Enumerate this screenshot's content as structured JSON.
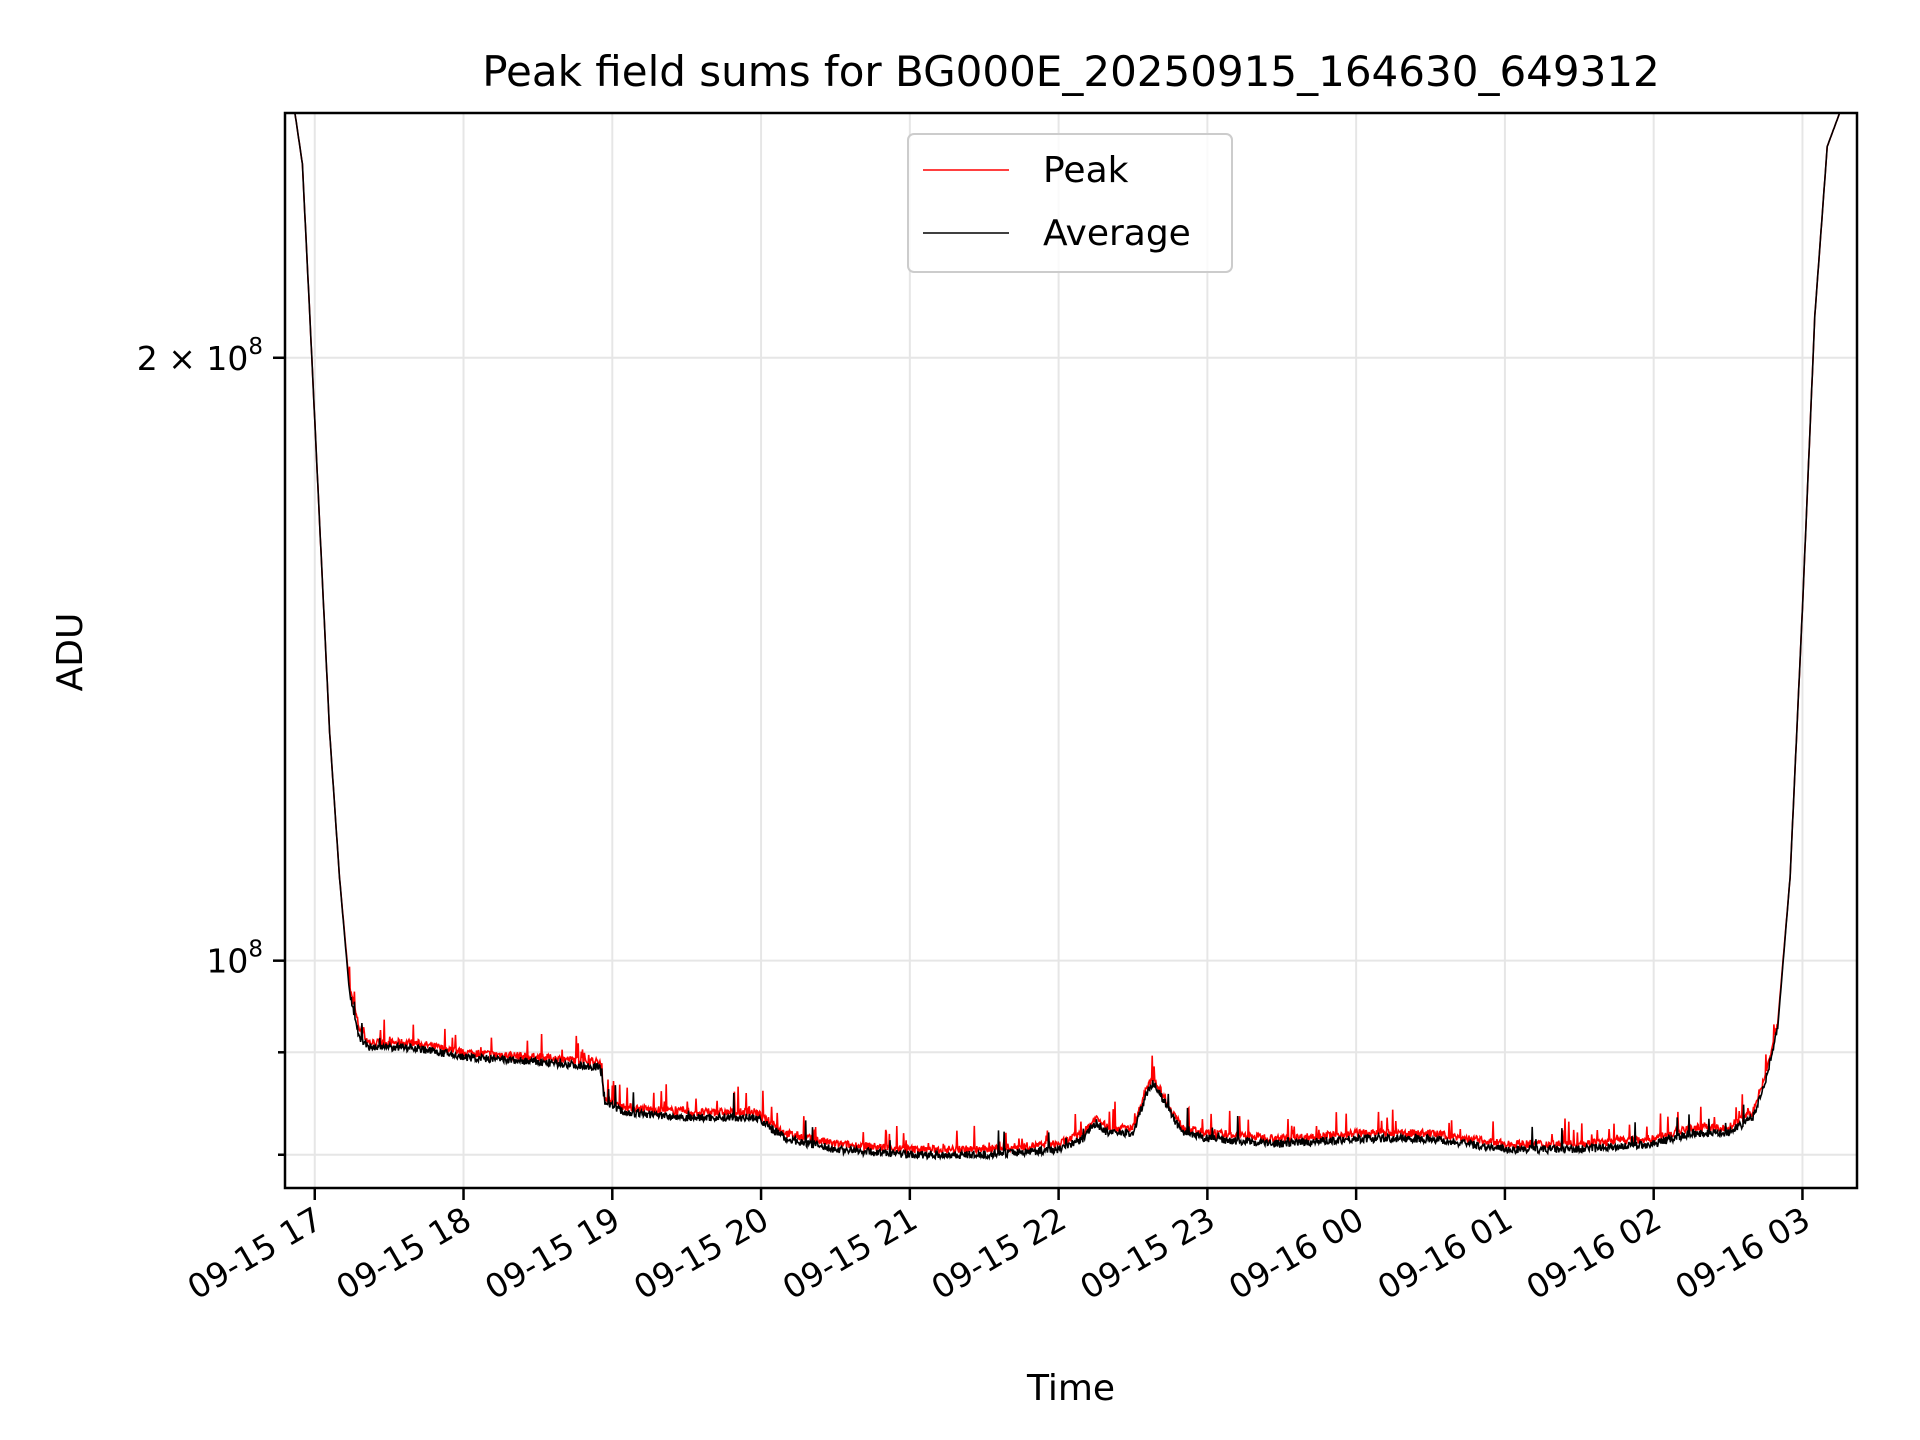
{
  "chart_data": {
    "type": "line",
    "title": "Peak field sums for BG000E_20250915_164630_649312",
    "xlabel": "Time",
    "ylabel": "ADU",
    "yscale": "log",
    "grid": true,
    "legend_position": "top-center",
    "xlim": [
      "09-15 16:48",
      "09-16 03:22"
    ],
    "ylim": [
      77000000,
      265000000
    ],
    "x_ticks": [
      {
        "value": "09-15 17:00",
        "label": "09-15 17"
      },
      {
        "value": "09-15 18:00",
        "label": "09-15 18"
      },
      {
        "value": "09-15 19:00",
        "label": "09-15 19"
      },
      {
        "value": "09-15 20:00",
        "label": "09-15 20"
      },
      {
        "value": "09-15 21:00",
        "label": "09-15 21"
      },
      {
        "value": "09-15 22:00",
        "label": "09-15 22"
      },
      {
        "value": "09-15 23:00",
        "label": "09-15 23"
      },
      {
        "value": "09-16 00:00",
        "label": "09-16 00"
      },
      {
        "value": "09-16 01:00",
        "label": "09-16 01"
      },
      {
        "value": "09-16 02:00",
        "label": "09-16 02"
      },
      {
        "value": "09-16 03:00",
        "label": "09-16 03"
      }
    ],
    "y_ticks": [
      {
        "value": 100000000,
        "base": "10",
        "exp": "8",
        "mult": ""
      },
      {
        "value": 200000000,
        "base": "10",
        "exp": "8",
        "mult": "2 × "
      }
    ],
    "y_minor_ticks": [
      90000000,
      80000000
    ],
    "series": [
      {
        "name": "Peak",
        "color": "#ff0000",
        "x": [
          "09-15 16:48",
          "09-15 16:52",
          "09-15 16:55",
          "09-15 16:58",
          "09-15 17:02",
          "09-15 17:06",
          "09-15 17:10",
          "09-15 17:14",
          "09-15 17:18",
          "09-15 17:22",
          "09-15 17:30",
          "09-15 17:40",
          "09-15 18:00",
          "09-15 18:30",
          "09-15 18:55",
          "09-15 18:57",
          "09-15 19:05",
          "09-15 19:30",
          "09-15 19:58",
          "09-15 20:10",
          "09-15 20:30",
          "09-15 21:00",
          "09-15 21:30",
          "09-15 22:00",
          "09-15 22:10",
          "09-15 22:15",
          "09-15 22:20",
          "09-15 22:30",
          "09-15 22:35",
          "09-15 22:38",
          "09-15 22:45",
          "09-15 22:50",
          "09-15 23:00",
          "09-15 23:30",
          "09-16 00:00",
          "09-16 00:30",
          "09-16 01:00",
          "09-16 01:30",
          "09-16 02:00",
          "09-16 02:15",
          "09-16 02:30",
          "09-16 02:40",
          "09-16 02:45",
          "09-16 02:50",
          "09-16 02:55",
          "09-16 03:00",
          "09-16 03:05",
          "09-16 03:10",
          "09-16 03:15",
          "09-16 03:22"
        ],
        "y": [
          265000000,
          265000000,
          250000000,
          210000000,
          165000000,
          130000000,
          110000000,
          97000000,
          92500000,
          91000000,
          91000000,
          91000000,
          90000000,
          89500000,
          89000000,
          85500000,
          84500000,
          84000000,
          84000000,
          82000000,
          81000000,
          80500000,
          80500000,
          81000000,
          82000000,
          83500000,
          82500000,
          82500000,
          86000000,
          87500000,
          84500000,
          82500000,
          82000000,
          81500000,
          82000000,
          82000000,
          81000000,
          81000000,
          81500000,
          82500000,
          82500000,
          84000000,
          87500000,
          93000000,
          110000000,
          150000000,
          210000000,
          255000000,
          265000000,
          265000000
        ]
      },
      {
        "name": "Average",
        "color": "#000000",
        "x": [
          "09-15 16:48",
          "09-15 16:52",
          "09-15 16:55",
          "09-15 16:58",
          "09-15 17:02",
          "09-15 17:06",
          "09-15 17:10",
          "09-15 17:14",
          "09-15 17:18",
          "09-15 17:22",
          "09-15 17:30",
          "09-15 17:40",
          "09-15 18:00",
          "09-15 18:30",
          "09-15 18:55",
          "09-15 18:57",
          "09-15 19:05",
          "09-15 19:30",
          "09-15 19:58",
          "09-15 20:10",
          "09-15 20:30",
          "09-15 21:00",
          "09-15 21:30",
          "09-15 22:00",
          "09-15 22:10",
          "09-15 22:15",
          "09-15 22:20",
          "09-15 22:30",
          "09-15 22:35",
          "09-15 22:38",
          "09-15 22:45",
          "09-15 22:50",
          "09-15 23:00",
          "09-15 23:30",
          "09-16 00:00",
          "09-16 00:30",
          "09-16 01:00",
          "09-16 01:30",
          "09-16 02:00",
          "09-16 02:15",
          "09-16 02:30",
          "09-16 02:40",
          "09-16 02:45",
          "09-16 02:50",
          "09-16 02:55",
          "09-16 03:00",
          "09-16 03:05",
          "09-16 03:10",
          "09-16 03:15",
          "09-16 03:22"
        ],
        "y": [
          265000000,
          265000000,
          250000000,
          210000000,
          165000000,
          130000000,
          110000000,
          96500000,
          91500000,
          90500000,
          90500000,
          90500000,
          89500000,
          89000000,
          88500000,
          85000000,
          84000000,
          83500000,
          83500000,
          81500000,
          80500000,
          80000000,
          80000000,
          80500000,
          81500000,
          83000000,
          82000000,
          82000000,
          85500000,
          87000000,
          84000000,
          82000000,
          81500000,
          81000000,
          81500000,
          81500000,
          80500000,
          80500000,
          81000000,
          82000000,
          82000000,
          83500000,
          87000000,
          92500000,
          110000000,
          150000000,
          210000000,
          255000000,
          265000000,
          265000000
        ]
      }
    ]
  }
}
